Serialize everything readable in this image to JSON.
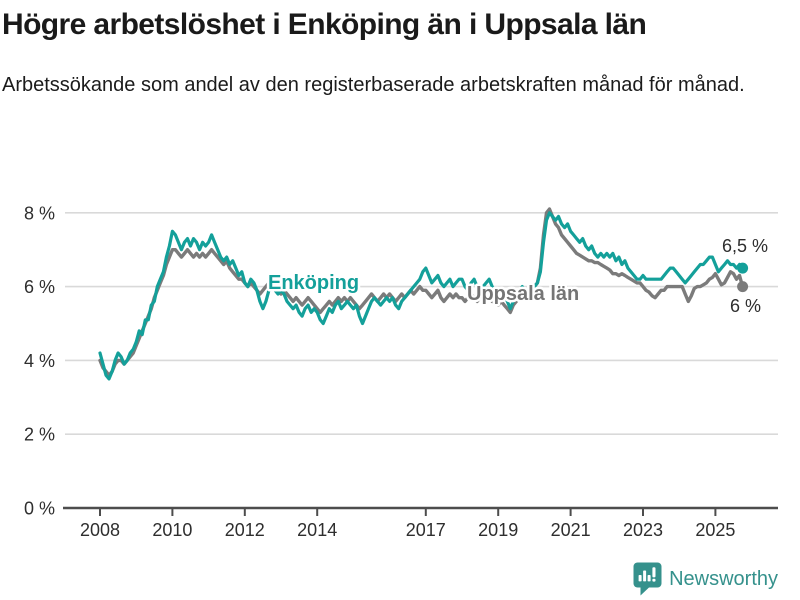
{
  "header": {
    "title": "Högre arbetslöshet i Enköping än i Uppsala län",
    "subtitle": "Arbetssökande som andel av den registerbaserade arbetskraften månad för månad."
  },
  "chart_data": {
    "type": "line",
    "title": "Högre arbetslöshet i Enköping än i Uppsala län",
    "xlabel": "",
    "ylabel": "",
    "x_range": {
      "start_year": 2008,
      "start_month": 1,
      "end_year": 2025,
      "end_month": 10,
      "step": "monthly"
    },
    "ylim": [
      0,
      8.6
    ],
    "grid": "horizontal",
    "x_ticks": [
      2008,
      2010,
      2012,
      2014,
      2017,
      2019,
      2021,
      2023,
      2025
    ],
    "y_ticks": [
      {
        "value": 8,
        "label": "8 %"
      },
      {
        "value": 6,
        "label": "6 %"
      },
      {
        "value": 4,
        "label": "4 %"
      },
      {
        "value": 2,
        "label": "2 %"
      },
      {
        "value": 0,
        "label": "0 %"
      }
    ],
    "series": [
      {
        "name": "Enköping",
        "color": "#14a09a",
        "end_label": "6,5 %",
        "end_value": 6.5,
        "values": [
          4.2,
          3.9,
          3.6,
          3.5,
          3.7,
          4.0,
          4.2,
          4.1,
          3.9,
          4.0,
          4.2,
          4.3,
          4.5,
          4.8,
          4.7,
          5.1,
          5.1,
          5.5,
          5.6,
          6.0,
          6.2,
          6.4,
          6.8,
          7.1,
          7.5,
          7.4,
          7.2,
          7.0,
          7.2,
          7.3,
          7.1,
          7.3,
          7.2,
          7.0,
          7.2,
          7.1,
          7.2,
          7.4,
          7.2,
          7.0,
          6.8,
          6.7,
          6.8,
          6.6,
          6.7,
          6.5,
          6.3,
          6.4,
          6.1,
          6.0,
          6.2,
          6.1,
          5.9,
          5.6,
          5.4,
          5.6,
          5.9,
          6.0,
          5.9,
          5.8,
          5.9,
          5.8,
          5.6,
          5.5,
          5.4,
          5.5,
          5.3,
          5.2,
          5.4,
          5.5,
          5.3,
          5.4,
          5.3,
          5.1,
          5.0,
          5.2,
          5.4,
          5.3,
          5.5,
          5.6,
          5.4,
          5.5,
          5.6,
          5.5,
          5.4,
          5.5,
          5.2,
          5.0,
          5.2,
          5.4,
          5.6,
          5.7,
          5.6,
          5.5,
          5.6,
          5.7,
          5.6,
          5.7,
          5.5,
          5.4,
          5.6,
          5.7,
          5.8,
          5.9,
          6.0,
          6.1,
          6.2,
          6.4,
          6.5,
          6.3,
          6.1,
          6.2,
          6.3,
          6.1,
          6.0,
          6.1,
          6.2,
          6.0,
          6.1,
          6.2,
          6.2,
          6.0,
          5.9,
          6.1,
          6.2,
          6.0,
          5.9,
          6.0,
          6.1,
          6.2,
          6.0,
          5.9,
          5.7,
          5.9,
          5.8,
          5.6,
          5.4,
          5.6,
          5.8,
          5.9,
          6.0,
          5.9,
          5.8,
          6.0,
          6.0,
          6.1,
          6.4,
          7.2,
          7.8,
          8.0,
          7.9,
          7.8,
          7.9,
          7.7,
          7.6,
          7.7,
          7.5,
          7.4,
          7.3,
          7.2,
          7.3,
          7.1,
          7.0,
          7.1,
          6.9,
          6.8,
          6.9,
          6.8,
          6.9,
          6.8,
          6.9,
          6.7,
          6.8,
          6.6,
          6.7,
          6.5,
          6.4,
          6.3,
          6.2,
          6.2,
          6.3,
          6.2,
          6.2,
          6.2,
          6.2,
          6.2,
          6.2,
          6.3,
          6.4,
          6.5,
          6.5,
          6.4,
          6.3,
          6.2,
          6.1,
          6.2,
          6.3,
          6.4,
          6.5,
          6.6,
          6.6,
          6.7,
          6.8,
          6.8,
          6.6,
          6.4,
          6.5,
          6.6,
          6.7,
          6.6,
          6.6,
          6.5,
          6.6,
          6.5
        ]
      },
      {
        "name": "Uppsala län",
        "color": "#7b7b7b",
        "end_label": "6 %",
        "end_value": 6.0,
        "values": [
          4.0,
          3.8,
          3.7,
          3.6,
          3.7,
          3.9,
          4.0,
          4.0,
          3.9,
          4.0,
          4.1,
          4.2,
          4.4,
          4.6,
          4.8,
          5.0,
          5.2,
          5.4,
          5.7,
          5.9,
          6.1,
          6.3,
          6.6,
          6.8,
          7.0,
          7.0,
          6.9,
          6.8,
          6.9,
          7.0,
          6.9,
          6.8,
          6.9,
          6.8,
          6.9,
          6.8,
          6.9,
          7.0,
          6.9,
          6.8,
          6.7,
          6.6,
          6.7,
          6.5,
          6.4,
          6.3,
          6.2,
          6.2,
          6.1,
          6.0,
          6.1,
          6.0,
          5.9,
          5.8,
          5.9,
          6.0,
          6.1,
          6.0,
          5.9,
          5.9,
          5.8,
          5.9,
          5.8,
          5.7,
          5.6,
          5.7,
          5.6,
          5.5,
          5.6,
          5.7,
          5.6,
          5.5,
          5.4,
          5.3,
          5.4,
          5.5,
          5.6,
          5.5,
          5.6,
          5.7,
          5.6,
          5.7,
          5.6,
          5.7,
          5.6,
          5.5,
          5.4,
          5.5,
          5.6,
          5.7,
          5.8,
          5.7,
          5.6,
          5.7,
          5.8,
          5.7,
          5.8,
          5.7,
          5.6,
          5.7,
          5.8,
          5.7,
          5.8,
          5.9,
          5.8,
          5.9,
          6.0,
          5.9,
          5.9,
          5.8,
          5.7,
          5.8,
          5.9,
          5.7,
          5.6,
          5.7,
          5.8,
          5.7,
          5.8,
          5.7,
          5.7,
          5.6,
          5.7,
          5.8,
          5.7,
          5.6,
          5.7,
          5.7,
          5.8,
          5.7,
          5.6,
          5.7,
          5.5,
          5.6,
          5.5,
          5.4,
          5.3,
          5.5,
          5.6,
          5.7,
          5.8,
          5.7,
          5.8,
          5.9,
          6.0,
          6.1,
          6.5,
          7.4,
          8.0,
          8.1,
          7.9,
          7.7,
          7.6,
          7.4,
          7.3,
          7.2,
          7.1,
          7.0,
          6.9,
          6.85,
          6.8,
          6.75,
          6.7,
          6.7,
          6.65,
          6.65,
          6.6,
          6.55,
          6.5,
          6.45,
          6.35,
          6.35,
          6.3,
          6.35,
          6.3,
          6.25,
          6.2,
          6.15,
          6.1,
          6.1,
          6.0,
          5.9,
          5.85,
          5.75,
          5.7,
          5.8,
          5.9,
          5.9,
          6.0,
          6.0,
          6.0,
          6.0,
          6.0,
          6.0,
          5.8,
          5.6,
          5.75,
          5.95,
          6.0,
          6.0,
          6.05,
          6.1,
          6.2,
          6.25,
          6.35,
          6.2,
          6.05,
          6.1,
          6.25,
          6.4,
          6.35,
          6.2,
          6.3,
          6.0
        ]
      }
    ],
    "legend_position": "inline-labels"
  },
  "footer": {
    "brand": "Newsworthy",
    "brand_color": "#35918c",
    "logo_icon": "bar-chart-speech-bubble-icon"
  },
  "style": {
    "accent_teal": "#14a09a",
    "line_gray": "#7b7b7b",
    "grid_color": "#d9d9d9",
    "axis_color": "#4d4d4d",
    "text_dark": "#1a1a1a"
  }
}
